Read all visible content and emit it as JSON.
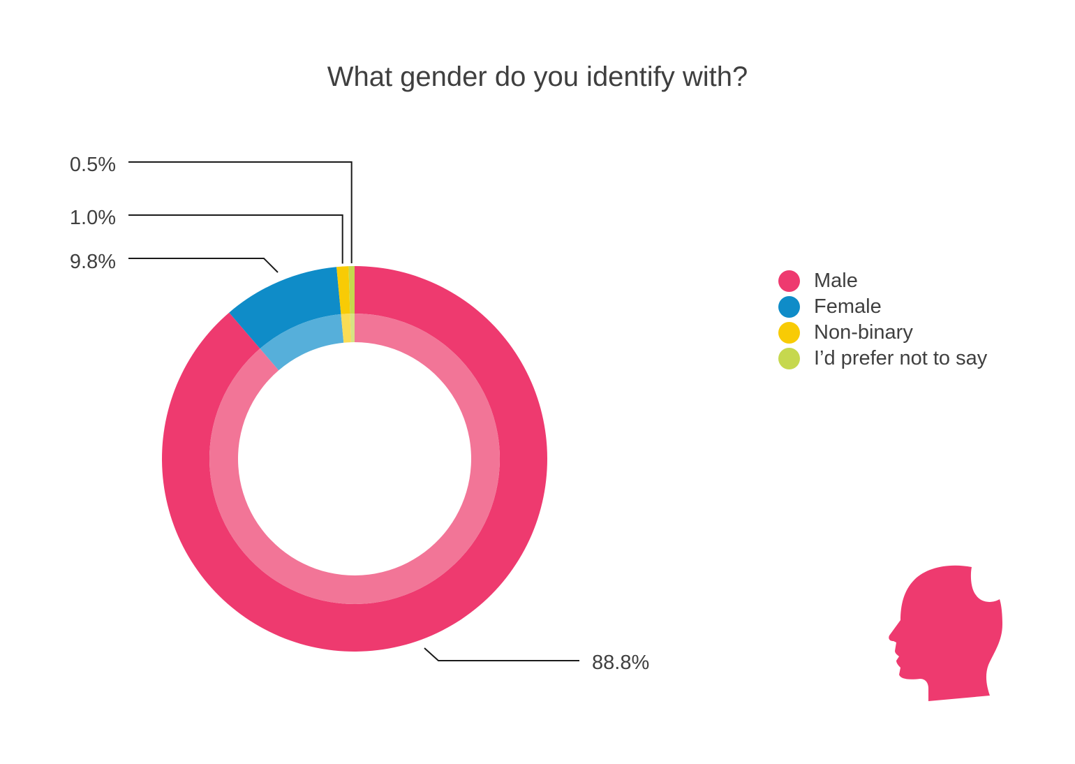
{
  "chart_data": {
    "type": "pie",
    "variant": "donut",
    "title": "What gender do you identify with?",
    "categories": [
      "Male",
      "Female",
      "Non-binary",
      "I’d prefer not to say"
    ],
    "values": [
      88.8,
      9.8,
      1.0,
      0.5
    ],
    "value_labels": [
      "88.8%",
      "9.8%",
      "1.0%",
      "0.5%"
    ],
    "colors": [
      "#ee3a6f",
      "#0f8cc8",
      "#f8cb05",
      "#c6d84e"
    ],
    "inner_colors": [
      "#f27597",
      "#56afda",
      "#fadc54",
      "#d7e383"
    ],
    "legend_position": "right",
    "icon": "head-silhouette-icon"
  }
}
